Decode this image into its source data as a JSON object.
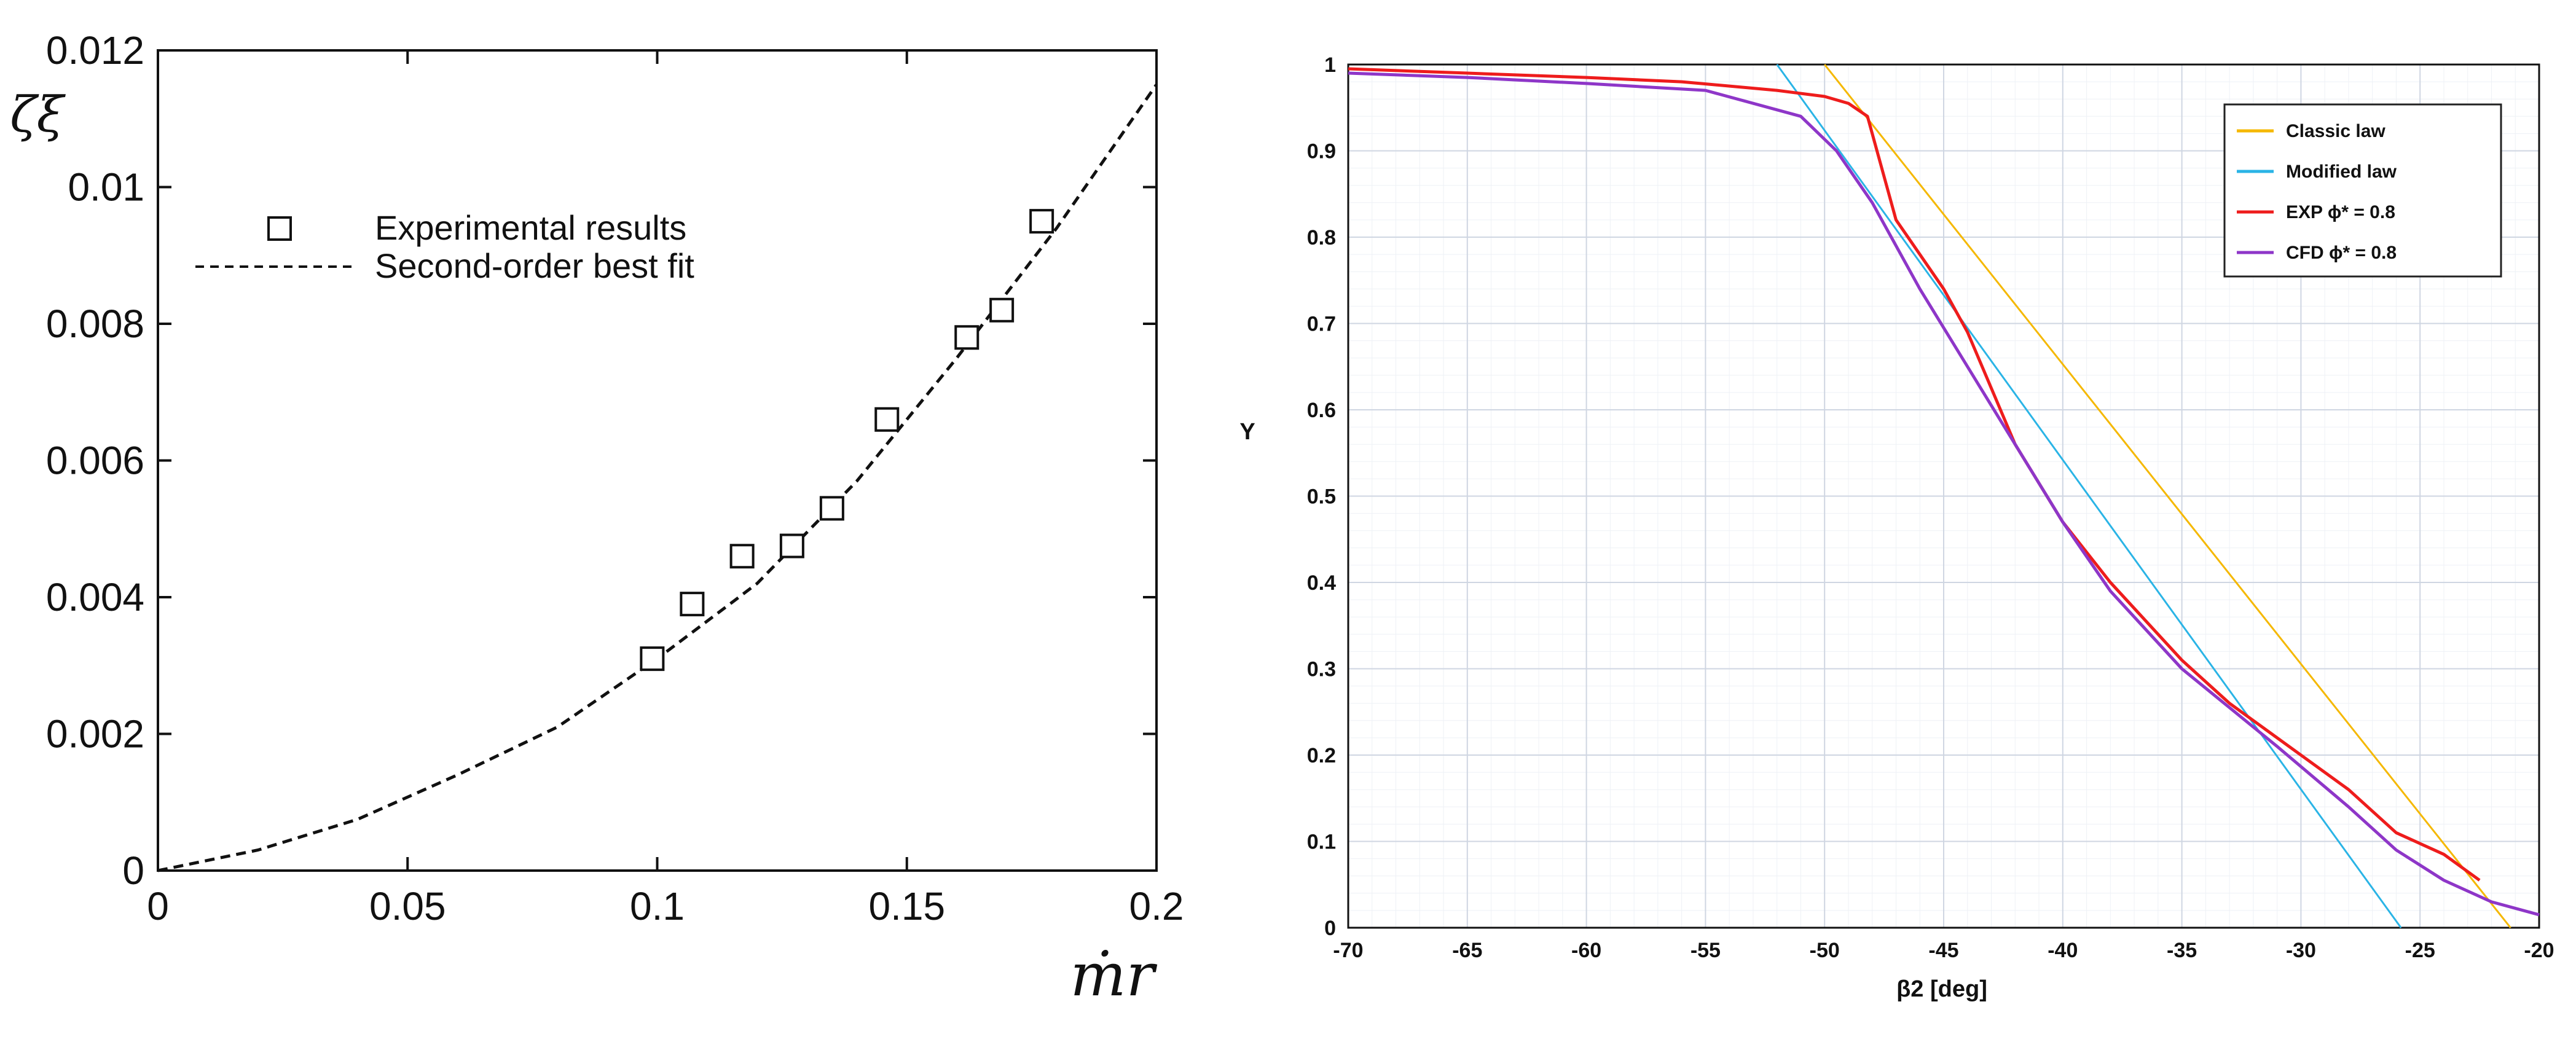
{
  "chart_data": [
    {
      "type": "scatter",
      "title": "",
      "xlabel": "ṁr",
      "ylabel": "ζξ",
      "xlim": [
        0,
        0.2
      ],
      "ylim": [
        0,
        0.012
      ],
      "xticks": [
        "0",
        "0.05",
        "0.1",
        "0.15",
        "0.2"
      ],
      "yticks": [
        "0",
        "0.002",
        "0.004",
        "0.006",
        "0.008",
        "0.01",
        "0.012"
      ],
      "legend_position": "upper-left",
      "series": [
        {
          "name": "Experimental results",
          "marker": "square",
          "x": [
            0.099,
            0.107,
            0.117,
            0.127,
            0.135,
            0.146,
            0.162,
            0.169,
            0.177
          ],
          "y": [
            0.0031,
            0.0039,
            0.0046,
            0.00475,
            0.0053,
            0.0066,
            0.0078,
            0.0082,
            0.0095
          ]
        },
        {
          "name": "Second-order best fit",
          "style": "dashed",
          "x": [
            0,
            0.02,
            0.04,
            0.06,
            0.08,
            0.1,
            0.12,
            0.14,
            0.16,
            0.18,
            0.2
          ],
          "y": [
            0,
            0.0003,
            0.00075,
            0.0014,
            0.0021,
            0.0031,
            0.0042,
            0.0057,
            0.0075,
            0.0094,
            0.0115
          ]
        }
      ]
    },
    {
      "type": "line",
      "title": "",
      "xlabel": "β2 [deg]",
      "ylabel": "Y",
      "xlim": [
        -70,
        -20
      ],
      "ylim": [
        0,
        1
      ],
      "xticks": [
        "-70",
        "-65",
        "-60",
        "-55",
        "-50",
        "-45",
        "-40",
        "-35",
        "-30",
        "-25",
        "-20"
      ],
      "yticks": [
        "0",
        "0.1",
        "0.2",
        "0.3",
        "0.4",
        "0.5",
        "0.6",
        "0.7",
        "0.8",
        "0.9",
        "1"
      ],
      "grid": true,
      "legend_position": "upper-right",
      "series": [
        {
          "name": "Classic law",
          "color": "#f5b800",
          "x": [
            -50,
            -21.2
          ],
          "y": [
            1,
            0
          ]
        },
        {
          "name": "Modified law",
          "color": "#2ab4e6",
          "x": [
            -52,
            -25.8
          ],
          "y": [
            1,
            0
          ]
        },
        {
          "name": "EXP ϕ* = 0.8",
          "color": "#ee1c1c",
          "x": [
            -70,
            -65,
            -60,
            -56,
            -52,
            -50,
            -49,
            -48.2,
            -47,
            -45,
            -44,
            -42,
            -40,
            -38,
            -35,
            -33,
            -30,
            -28,
            -26,
            -24,
            -22.5
          ],
          "y": [
            0.995,
            0.99,
            0.985,
            0.98,
            0.97,
            0.963,
            0.955,
            0.94,
            0.82,
            0.74,
            0.69,
            0.56,
            0.47,
            0.4,
            0.31,
            0.26,
            0.2,
            0.16,
            0.11,
            0.085,
            0.055
          ]
        },
        {
          "name": "CFD ϕ* = 0.8",
          "color": "#8e36c8",
          "x": [
            -70,
            -65,
            -60,
            -55,
            -51,
            -49.5,
            -48,
            -46,
            -44,
            -42,
            -40,
            -38,
            -35,
            -33,
            -31,
            -28,
            -26,
            -24,
            -22,
            -20
          ],
          "y": [
            0.99,
            0.985,
            0.978,
            0.97,
            0.94,
            0.9,
            0.84,
            0.74,
            0.65,
            0.56,
            0.47,
            0.39,
            0.3,
            0.255,
            0.21,
            0.14,
            0.09,
            0.055,
            0.03,
            0.015
          ]
        }
      ]
    }
  ]
}
